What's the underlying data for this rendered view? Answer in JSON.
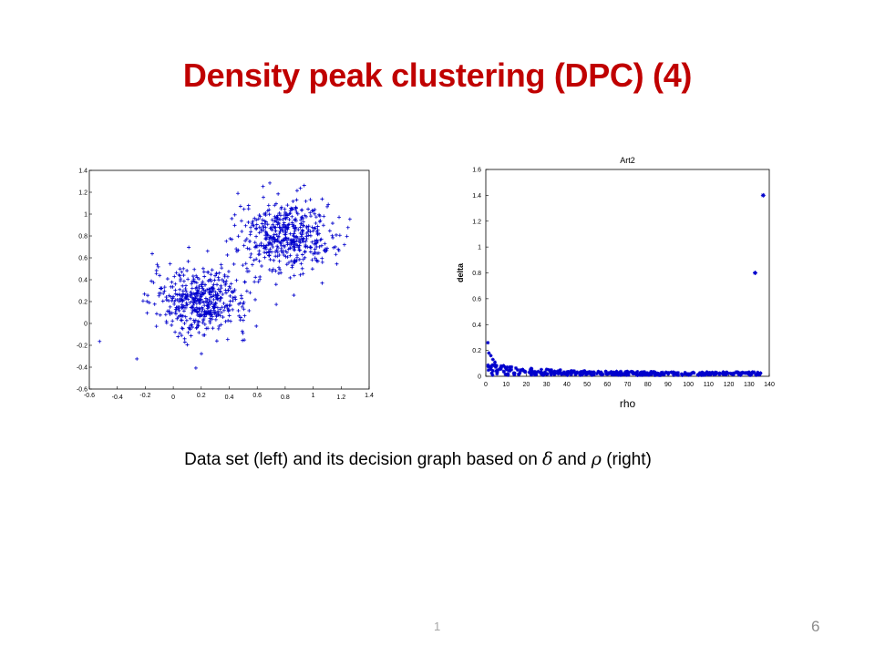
{
  "title": "Density peak clustering (DPC) (4)",
  "caption": {
    "prefix": "Data set (left) and its decision graph based on ",
    "delta_symbol": "δ",
    "middle": " and ",
    "rho_symbol": "ρ",
    "suffix": " (right)"
  },
  "footer_number": "1",
  "slide_number": "6",
  "chart_data": [
    {
      "type": "scatter",
      "title": "",
      "xlabel": "",
      "ylabel": "",
      "xlim": [
        -0.6,
        1.4
      ],
      "ylim": [
        -0.6,
        1.4
      ],
      "x_ticks": [
        "-0.6",
        "-0.4",
        "-0.2",
        "0",
        "0.2",
        "0.4",
        "0.6",
        "0.8",
        "1",
        "1.2",
        "1.4"
      ],
      "y_ticks": [
        "1.4",
        "1.2",
        "1",
        "0.8",
        "0.6",
        "0.4",
        "0.2",
        "0",
        "-0.2",
        "-0.4",
        "-0.6"
      ],
      "marker": "+",
      "color": "#0000cc",
      "clusters": [
        {
          "center": [
            0.2,
            0.2
          ],
          "spread": [
            0.17,
            0.15
          ],
          "count": 500
        },
        {
          "center": [
            0.8,
            0.8
          ],
          "spread": [
            0.17,
            0.16
          ],
          "count": 500
        }
      ]
    },
    {
      "type": "scatter",
      "title": "Art2",
      "xlabel": "rho",
      "ylabel": "delta",
      "xlim": [
        0,
        140
      ],
      "ylim": [
        0,
        1.6
      ],
      "x_ticks": [
        "0",
        "10",
        "20",
        "30",
        "40",
        "50",
        "60",
        "70",
        "80",
        "90",
        "100",
        "110",
        "120",
        "130",
        "140"
      ],
      "y_ticks": [
        "1.6",
        "1.4",
        "1.2",
        "1",
        "0.8",
        "0.6",
        "0.4",
        "0.2",
        "0"
      ],
      "marker": "*",
      "color": "#0000cc",
      "outliers": [
        {
          "x": 133,
          "y": 0.8
        },
        {
          "x": 137,
          "y": 1.4
        }
      ],
      "near_zero_points": {
        "x_range": [
          1,
          136
        ],
        "y_range": [
          0,
          0.12
        ],
        "count": 420
      },
      "near_origin_points": [
        {
          "x": 1,
          "y": 0.26
        },
        {
          "x": 1.5,
          "y": 0.18
        },
        {
          "x": 2.5,
          "y": 0.16
        },
        {
          "x": 3.5,
          "y": 0.13
        },
        {
          "x": 4.5,
          "y": 0.11
        }
      ]
    }
  ]
}
